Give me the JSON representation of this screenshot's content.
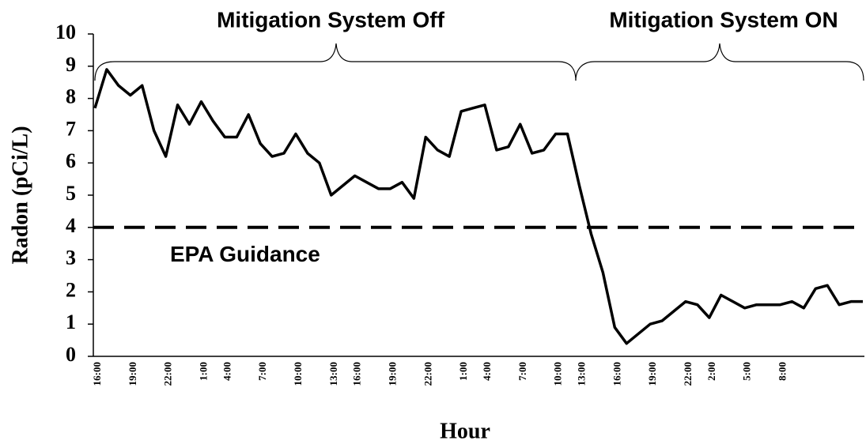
{
  "chart_data": {
    "type": "line",
    "title": "Mitigation System Off",
    "subtitle": "Mitigation System ON",
    "x_label": "Hour",
    "y_label": "Radon (pCi/L)",
    "categories": [
      "16:00",
      null,
      null,
      "19:00",
      null,
      null,
      "22:00",
      null,
      null,
      "1:00",
      null,
      "4:00",
      null,
      null,
      "7:00",
      null,
      null,
      "10:00",
      null,
      null,
      "13:00",
      null,
      "16:00",
      null,
      null,
      "19:00",
      null,
      null,
      "22:00",
      null,
      null,
      "1:00",
      null,
      "4:00",
      null,
      null,
      "7:00",
      null,
      null,
      "10:00",
      null,
      "13:00",
      null,
      null,
      "16:00",
      null,
      null,
      "19:00",
      null,
      null,
      "22:00",
      null,
      "2:00",
      null,
      null,
      "5:00",
      null,
      null,
      "8:00",
      null,
      null,
      null,
      null,
      null,
      null,
      null
    ],
    "series": [
      {
        "name": "Radon",
        "color": "#000000",
        "values": [
          7.7,
          8.9,
          8.4,
          8.1,
          8.4,
          7.0,
          6.2,
          7.8,
          7.2,
          7.9,
          7.3,
          6.8,
          6.8,
          7.5,
          6.6,
          6.2,
          6.3,
          6.9,
          6.3,
          6.0,
          5.0,
          5.3,
          5.6,
          5.4,
          5.2,
          5.2,
          5.4,
          4.9,
          6.8,
          6.4,
          6.2,
          7.6,
          7.7,
          7.8,
          6.4,
          6.5,
          7.2,
          6.3,
          6.4,
          6.9,
          6.9,
          5.3,
          3.8,
          2.6,
          0.9,
          0.4,
          0.7,
          1.0,
          1.1,
          1.4,
          1.7,
          1.6,
          1.2,
          1.9,
          1.7,
          1.5,
          1.6,
          1.6,
          1.6,
          1.7,
          1.5,
          2.1,
          2.2,
          1.6,
          1.7,
          1.7
        ]
      }
    ],
    "ylim": [
      0,
      10
    ],
    "yticks": [
      0,
      1,
      2,
      3,
      4,
      5,
      6,
      7,
      8,
      9,
      10
    ],
    "threshold": {
      "value": 4,
      "label": "EPA Guidance"
    },
    "grid": false
  }
}
